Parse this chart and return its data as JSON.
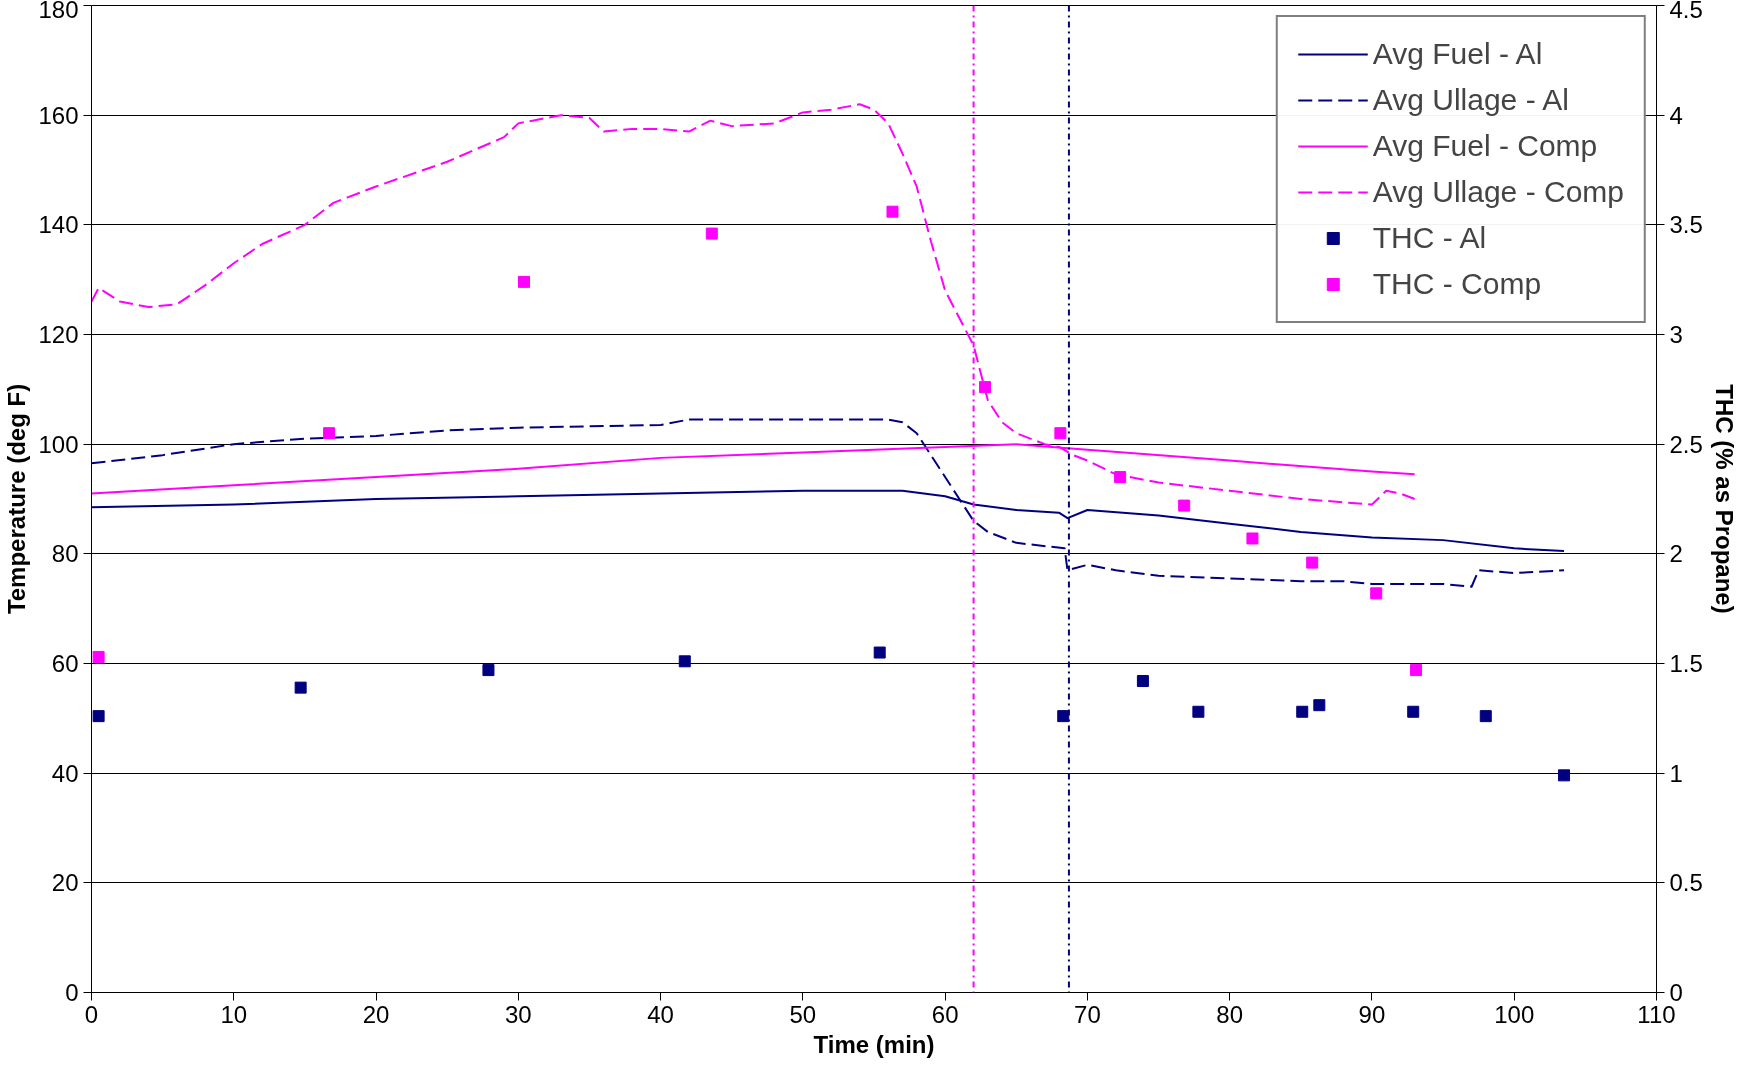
{
  "chart_data": {
    "type": "line",
    "xlabel": "Time (min)",
    "ylabel": "Temperature (deg F)",
    "y2label": "THC (% as Propane)",
    "xlim": [
      0,
      110
    ],
    "xticks": [
      0,
      10,
      20,
      30,
      40,
      50,
      60,
      70,
      80,
      90,
      100,
      110
    ],
    "ylim": [
      0,
      180
    ],
    "yticks": [
      0,
      20,
      40,
      60,
      80,
      100,
      120,
      140,
      160,
      180
    ],
    "y2lim": [
      0,
      4.5
    ],
    "y2ticks": [
      0,
      0.5,
      1,
      1.5,
      2,
      2.5,
      3,
      3.5,
      4,
      4.5
    ],
    "grid": "y",
    "legend": "top right",
    "ref_lines": [
      {
        "axis": "x",
        "value": 62,
        "color": "#ff00ff",
        "line_style": "dashdot"
      },
      {
        "axis": "x",
        "value": 68.7,
        "color": "#000080",
        "line_style": "dashdot"
      }
    ],
    "series": [
      {
        "name": "Avg Fuel - Al",
        "color": "#000080",
        "line_style": "solid",
        "x": [
          0,
          10,
          20,
          30,
          40,
          50,
          57,
          60,
          62,
          65,
          68,
          68.6,
          70,
          75,
          80,
          85,
          90,
          95,
          100,
          103.5
        ],
        "values": [
          88.5,
          89,
          90,
          90.5,
          91,
          91.5,
          91.5,
          90.5,
          89,
          88,
          87.5,
          86.5,
          88,
          87,
          85.5,
          84,
          83,
          82.5,
          81,
          80.5
        ]
      },
      {
        "name": "Avg Ullage - Al",
        "color": "#000080",
        "line_style": "dashed",
        "x": [
          0,
          5,
          10,
          15,
          20,
          25,
          30,
          40,
          42,
          50,
          56,
          57,
          58,
          59,
          60,
          61,
          62,
          63,
          65,
          68.4,
          68.6,
          70,
          72,
          75,
          80,
          85,
          88,
          90,
          95,
          97,
          97.5,
          100,
          103.5
        ],
        "values": [
          96.5,
          98,
          100,
          101,
          101.5,
          102.5,
          103,
          103.5,
          104.5,
          104.5,
          104.5,
          104,
          102,
          98,
          94,
          90,
          86,
          84,
          82,
          81,
          77,
          78,
          77,
          76,
          75.5,
          75,
          75,
          74.5,
          74.5,
          74,
          77,
          76.5,
          77
        ]
      },
      {
        "name": "Avg Fuel - Comp",
        "color": "#ff00ff",
        "line_style": "solid",
        "x": [
          0,
          10,
          20,
          30,
          40,
          50,
          60,
          65,
          70,
          80,
          90,
          93
        ],
        "values": [
          91,
          92.5,
          94,
          95.5,
          97.5,
          98.5,
          99.5,
          100,
          99,
          97,
          95,
          94.5
        ]
      },
      {
        "name": "Avg Ullage - Comp",
        "color": "#ff00ff",
        "line_style": "dashed",
        "x": [
          0,
          0.5,
          2,
          4,
          6,
          8,
          10,
          12,
          15,
          17,
          18,
          20,
          25,
          29,
          30,
          31,
          33,
          35,
          36,
          38,
          40,
          42,
          43.5,
          45,
          48,
          50,
          52,
          54,
          55,
          56,
          57,
          58,
          59,
          60,
          61,
          62,
          63,
          64,
          65,
          67,
          68,
          69,
          70,
          72,
          75,
          80,
          85,
          90,
          91,
          92,
          93
        ],
        "values": [
          126,
          128.5,
          126,
          125,
          125.5,
          129,
          133,
          136.5,
          140,
          144,
          145,
          147,
          151.5,
          156,
          158.5,
          159,
          160,
          159.5,
          157,
          157.5,
          157.5,
          157,
          159,
          158,
          158.5,
          160.5,
          161,
          162,
          161,
          158.5,
          153,
          147,
          137,
          128,
          123,
          118,
          108,
          104,
          102,
          100,
          99.5,
          98,
          97,
          94.5,
          93,
          91.5,
          90,
          89,
          91.5,
          91,
          90
        ]
      },
      {
        "name": "THC - Al",
        "color": "#000080",
        "type": "scatter",
        "marker": "square",
        "axis": "y2",
        "x": [
          0.5,
          14.7,
          27.9,
          41.7,
          55.4,
          68.3,
          73.9,
          77.8,
          85.1,
          86.3,
          92.9,
          98,
          103.5
        ],
        "values": [
          1.26,
          1.39,
          1.47,
          1.51,
          1.55,
          1.26,
          1.42,
          1.28,
          1.28,
          1.31,
          1.28,
          1.26,
          0.99
        ]
      },
      {
        "name": "THC - Comp",
        "color": "#ff00ff",
        "type": "scatter",
        "marker": "square",
        "axis": "y2",
        "x": [
          0.5,
          16.7,
          30.4,
          43.6,
          56.3,
          62.8,
          68.1,
          72.3,
          76.8,
          81.6,
          85.8,
          90.3,
          93.1
        ],
        "values": [
          1.53,
          2.55,
          3.24,
          3.46,
          3.56,
          2.76,
          2.55,
          2.35,
          2.22,
          2.07,
          1.96,
          1.82,
          1.47
        ]
      }
    ]
  }
}
